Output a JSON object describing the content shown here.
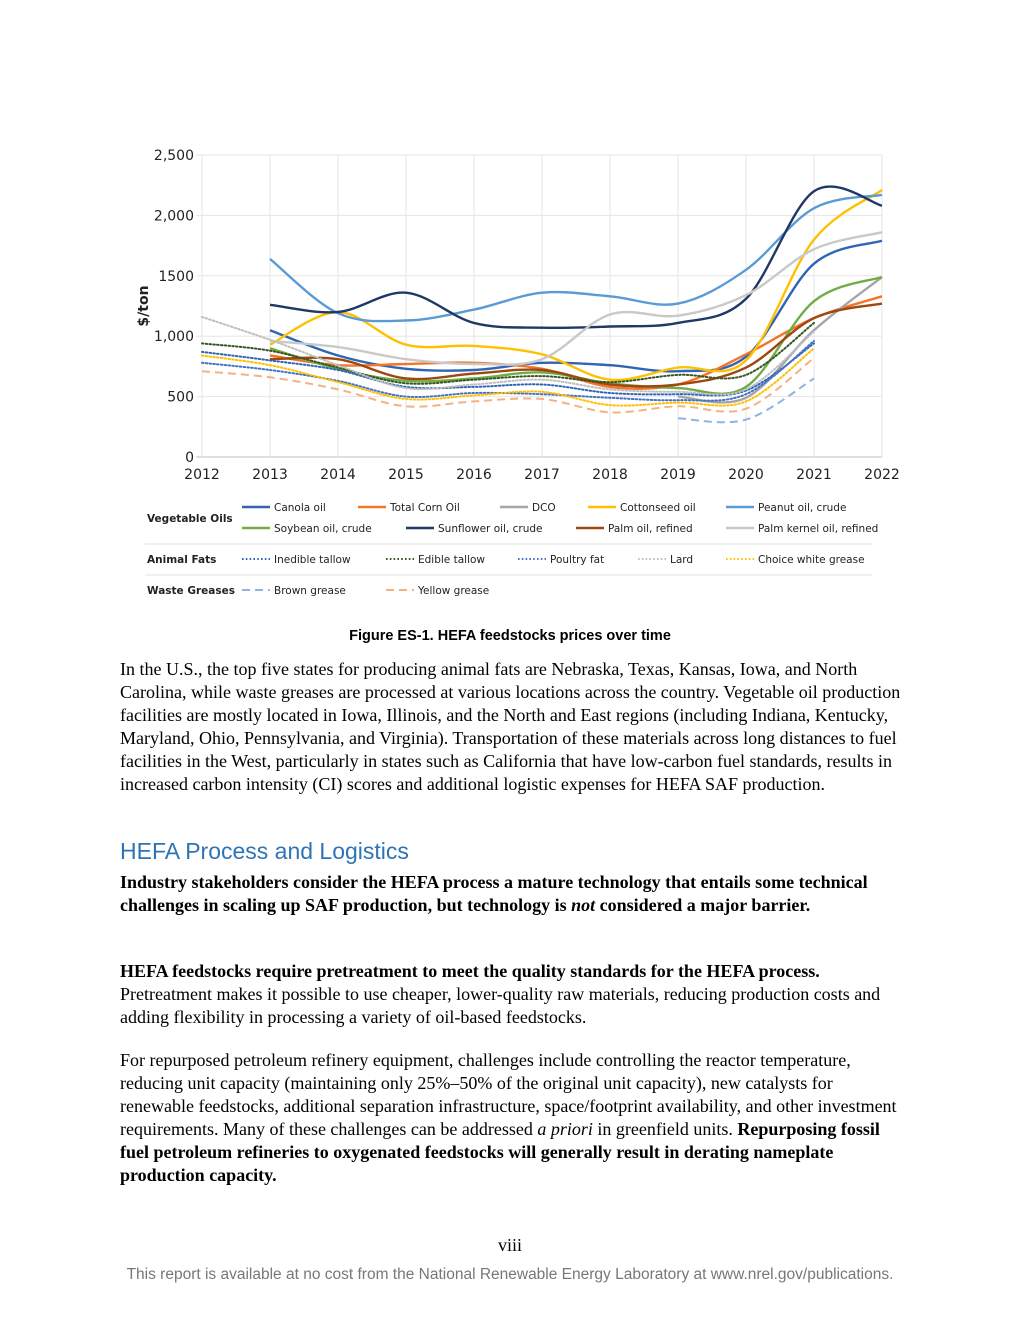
{
  "chart_data": {
    "type": "line",
    "title": "",
    "xlabel": "",
    "ylabel": "$/ton",
    "x": [
      2012,
      2013,
      2014,
      2015,
      2016,
      2017,
      2018,
      2019,
      2020,
      2021,
      2022
    ],
    "xlim": [
      2012,
      2022
    ],
    "ylim": [
      0,
      2500
    ],
    "yticks": [
      0,
      500,
      1000,
      1500,
      2000,
      2500
    ],
    "ytick_labels": [
      "0",
      "500",
      "1,000",
      "1500",
      "2,000",
      "2,500"
    ],
    "grid": true,
    "legend_position": "bottom",
    "groups": [
      {
        "label": "Vegetable Oils",
        "series": [
          0,
          1,
          2,
          3,
          4,
          5,
          6,
          7,
          8
        ]
      },
      {
        "label": "Animal Fats",
        "series": [
          9,
          10,
          11,
          12,
          13
        ]
      },
      {
        "label": "Waste Greases",
        "series": [
          14,
          15
        ]
      }
    ],
    "series": [
      {
        "name": "Canola oil",
        "color": "#2f65b5",
        "dash": "solid",
        "values": [
          null,
          1050,
          840,
          730,
          720,
          780,
          760,
          710,
          830,
          1600,
          1790
        ]
      },
      {
        "name": "Total Corn Oil",
        "color": "#f2752b",
        "dash": "solid",
        "values": [
          null,
          840,
          760,
          770,
          780,
          730,
          580,
          600,
          850,
          1150,
          1330
        ]
      },
      {
        "name": "DCO",
        "color": "#a5a5a5",
        "dash": "solid",
        "values": [
          null,
          null,
          null,
          null,
          null,
          null,
          null,
          500,
          490,
          1050,
          1490
        ]
      },
      {
        "name": "Cottonseed oil",
        "color": "#ffc000",
        "dash": "solid",
        "values": [
          null,
          930,
          1200,
          930,
          920,
          850,
          640,
          740,
          800,
          1800,
          2210
        ]
      },
      {
        "name": "Peanut oil, crude",
        "color": "#5b9bd5",
        "dash": "solid",
        "values": [
          null,
          1640,
          1190,
          1130,
          1220,
          1360,
          1330,
          1270,
          1550,
          2060,
          2170
        ]
      },
      {
        "name": "Soybean oil, crude",
        "color": "#70ad47",
        "dash": "solid",
        "values": [
          null,
          900,
          730,
          630,
          650,
          700,
          610,
          570,
          580,
          1290,
          1490
        ]
      },
      {
        "name": "Sunflower oil, crude",
        "color": "#203864",
        "dash": "solid",
        "values": [
          null,
          1260,
          1200,
          1360,
          1110,
          1070,
          1080,
          1110,
          1310,
          2200,
          2080
        ]
      },
      {
        "name": "Palm oil, refined",
        "color": "#9e480e",
        "dash": "solid",
        "values": [
          null,
          810,
          810,
          650,
          690,
          720,
          600,
          600,
          740,
          1150,
          1270
        ]
      },
      {
        "name": "Palm kernel oil, refined",
        "color": "#c9c9c9",
        "dash": "solid",
        "values": [
          null,
          960,
          910,
          810,
          770,
          810,
          1180,
          1170,
          1340,
          1720,
          1860
        ]
      },
      {
        "name": "Inedible tallow",
        "color": "#2f65b5",
        "dash": "dot",
        "values": [
          870,
          800,
          720,
          580,
          580,
          600,
          530,
          520,
          550,
          940,
          null
        ]
      },
      {
        "name": "Edible tallow",
        "color": "#375623",
        "dash": "dot",
        "values": [
          940,
          880,
          740,
          610,
          640,
          670,
          620,
          680,
          680,
          1110,
          null
        ]
      },
      {
        "name": "Poultry fat",
        "color": "#4472c4",
        "dash": "dot",
        "values": [
          780,
          720,
          630,
          500,
          530,
          520,
          490,
          470,
          520,
          960,
          null
        ]
      },
      {
        "name": "Lard",
        "color": "#bfbfbf",
        "dash": "dot",
        "values": [
          1160,
          970,
          760,
          570,
          600,
          640,
          560,
          540,
          560,
          1040,
          null
        ]
      },
      {
        "name": "Choice white grease",
        "color": "#ffc000",
        "dash": "dot",
        "values": [
          840,
          760,
          620,
          480,
          510,
          540,
          430,
          450,
          460,
          900,
          null
        ]
      },
      {
        "name": "Brown grease",
        "color": "#8db4e2",
        "dash": "dash",
        "values": [
          null,
          null,
          null,
          null,
          null,
          null,
          null,
          320,
          310,
          650,
          null
        ]
      },
      {
        "name": "Yellow grease",
        "color": "#f4b183",
        "dash": "dash",
        "values": [
          710,
          660,
          560,
          420,
          460,
          480,
          370,
          420,
          400,
          820,
          null
        ]
      }
    ]
  },
  "figure": {
    "caption": "Figure ES-1. HEFA feedstocks prices over time"
  },
  "text": {
    "para1": "In the U.S., the top five states for producing animal fats are Nebraska, Texas, Kansas, Iowa, and North Carolina, while waste greases are processed at various locations across the country. Vegetable oil production facilities are mostly located in Iowa, Illinois, and the North and East regions (including Indiana, Kentucky, Maryland, Ohio, Pennsylvania, and Virginia). Transportation of these materials across long distances to fuel facilities in the West, particularly in states such as California that have low-carbon fuel standards, results in increased carbon intensity (CI) scores and additional logistic expenses for HEFA SAF production.",
    "heading": "HEFA Process and Logistics",
    "para2_bold_a": "Industry stakeholders consider the HEFA process a mature technology that entails some technical challenges in scaling up SAF production, but technology is ",
    "para2_italic": "not",
    "para2_bold_b": " considered a major barrier.",
    "para3_bold": "HEFA feedstocks require pretreatment to meet the quality standards for the HEFA process.",
    "para3_rest": " Pretreatment makes it possible to use cheaper, lower-quality raw materials, reducing production costs and adding flexibility in processing a variety of oil-based feedstocks.",
    "para4_a": "For repurposed petroleum refinery equipment, challenges include controlling the reactor temperature, reducing unit capacity (maintaining only 25%–50% of the original unit capacity), new catalysts for renewable feedstocks, additional separation infrastructure, space/footprint availability, and other investment requirements. Many of these challenges can be addressed ",
    "para4_italic": "a priori",
    "para4_b": " in greenfield units. ",
    "para4_bold": "Repurposing fossil fuel petroleum refineries to oxygenated feedstocks will generally result in derating nameplate production capacity."
  },
  "page": {
    "number": "viii",
    "footer": "This report is available at no cost from the National Renewable Energy Laboratory at www.nrel.gov/publications."
  }
}
